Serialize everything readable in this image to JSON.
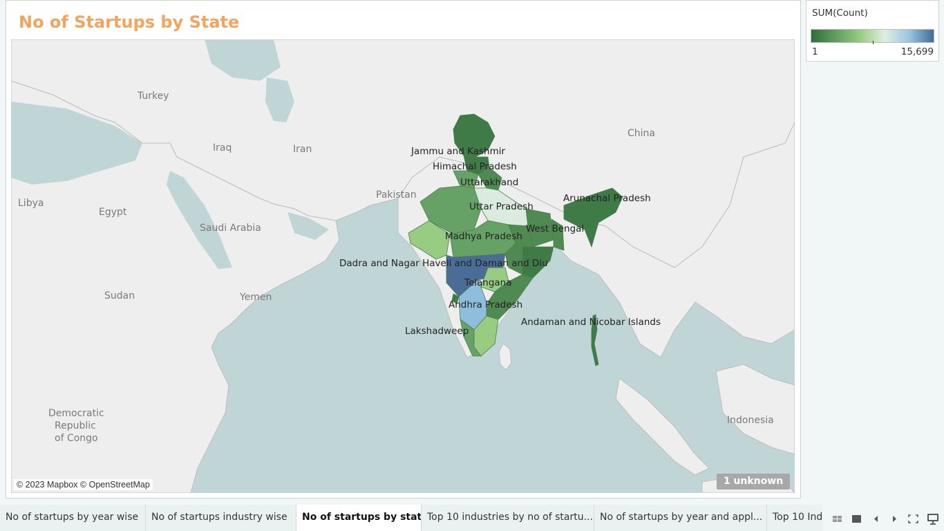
{
  "title": "No of Startups by State",
  "legend": {
    "title": "SUM(Count)",
    "min": "1",
    "max": "15,699",
    "gradient": [
      "#2f6e3a",
      "#5f9e60",
      "#98cc80",
      "#e0eee0",
      "#9bc4e0",
      "#3e6f9a"
    ]
  },
  "map": {
    "countries": [
      "Turkey",
      "Iraq",
      "Iran",
      "Libya",
      "Egypt",
      "Saudi Arabia",
      "Pakistan",
      "China",
      "Sudan",
      "Yemen",
      "Democratic",
      "Republic",
      "of Congo",
      "Indonesia"
    ],
    "states": [
      "Jammu and Kashmir",
      "Himachal Pradesh",
      "Uttarakhand",
      "Uttar Pradesh",
      "Arunachal Pradesh",
      "West Bengal",
      "Madhya Pradesh",
      "Dadra and Nagar Haveli and Daman and Diu",
      "Telangana",
      "Andhra Pradesh",
      "Andaman and Nicobar Islands",
      "Lakshadweep"
    ],
    "attribution": "© 2023 Mapbox © OpenStreetMap",
    "unknown_badge": "1 unknown",
    "colors": {
      "water": "#bfd5d6",
      "land": "#eeeeee",
      "dark_green": "#3f7b47",
      "mid_green": "#66a265",
      "light_green": "#99cc83",
      "pale": "#dcebe0",
      "light_blue": "#8fbedc",
      "dark_blue": "#4a6c97"
    }
  },
  "tabs": [
    "No of startups by year wise",
    "No of startups industry wise",
    "No of startups by state",
    "Top 10 industries by no of startu...",
    "No of startups by  year and appl...",
    "Top 10 Ind"
  ],
  "active_tab": 2,
  "controls": [
    "grid-view-icon",
    "single-view-icon",
    "prev-icon",
    "next-icon",
    "fullscreen-icon",
    "presentation-icon"
  ]
}
